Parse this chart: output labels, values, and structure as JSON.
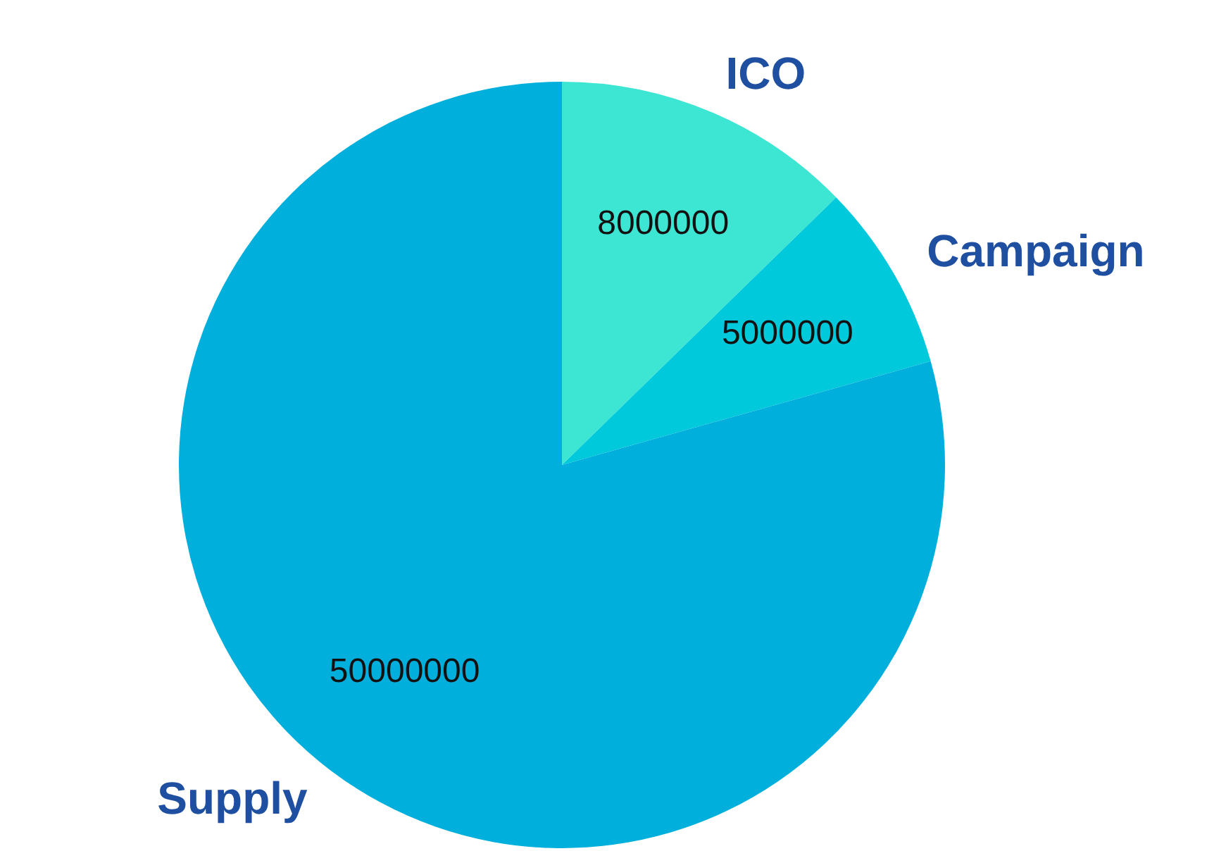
{
  "chart_data": {
    "type": "pie",
    "categories": [
      "ICO",
      "Campaign",
      "Supply"
    ],
    "values": [
      8000000,
      5000000,
      50000000
    ],
    "colors": [
      "#3de6d3",
      "#00c9dc",
      "#00afdc"
    ],
    "data_labels": true,
    "legend": false
  }
}
